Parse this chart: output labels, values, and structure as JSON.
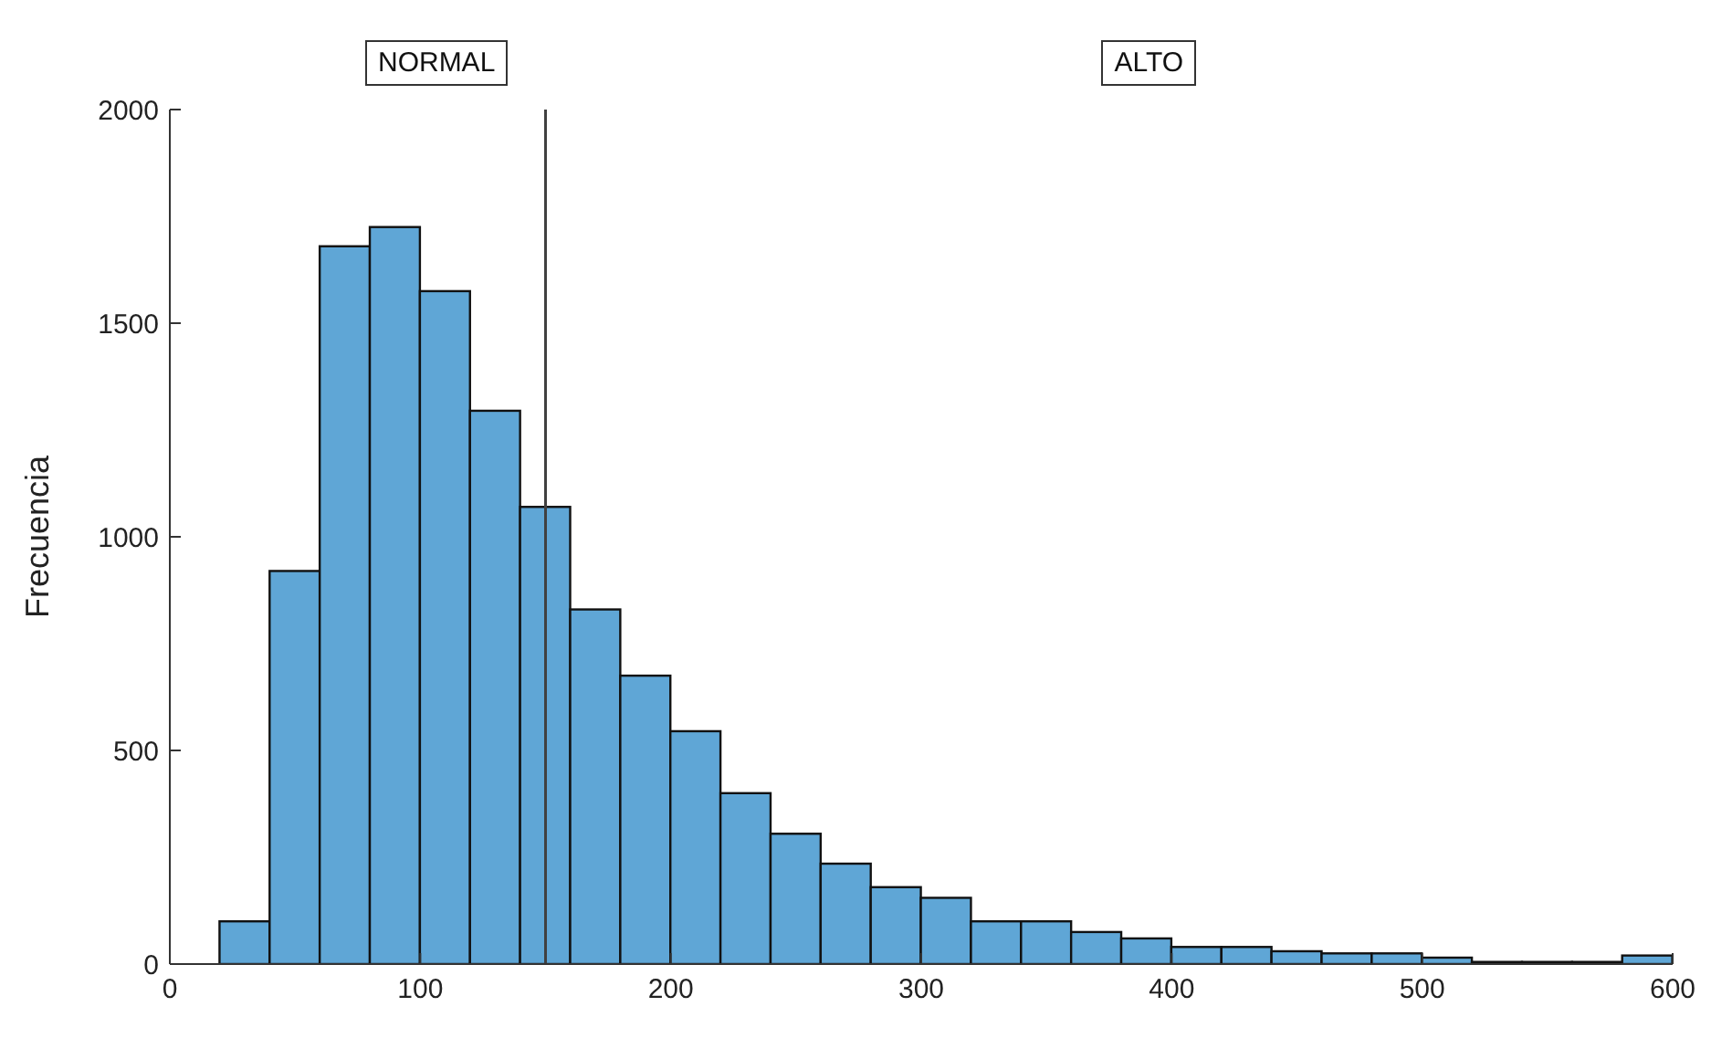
{
  "chart_data": {
    "type": "histogram",
    "ylabel": "Frecuencia",
    "annotations": [
      "NORMAL",
      "ALTO"
    ],
    "bins": [
      20,
      40,
      60,
      80,
      100,
      120,
      140,
      160,
      180,
      200,
      220,
      240,
      260,
      280,
      300,
      320,
      340,
      360,
      380,
      400,
      420,
      440,
      460,
      480,
      500,
      520,
      540,
      560,
      580,
      600
    ],
    "values": [
      100,
      920,
      1680,
      1725,
      1575,
      1295,
      1070,
      830,
      675,
      545,
      400,
      305,
      235,
      180,
      155,
      100,
      100,
      75,
      60,
      40,
      40,
      30,
      25,
      25,
      15,
      5,
      5,
      5,
      20
    ],
    "color": "#5fa6d6",
    "xlim": [
      0,
      600
    ],
    "xticks": [
      0,
      100,
      200,
      300,
      400,
      500,
      600
    ],
    "ylim": [
      0,
      2000
    ],
    "yticks": [
      0,
      500,
      1000,
      1500,
      2000
    ],
    "ref_lines": [
      {
        "axis": "x",
        "value": 150,
        "color": "#404040"
      }
    ],
    "grid": false,
    "legend": false
  }
}
